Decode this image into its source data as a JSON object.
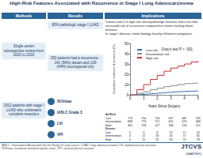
{
  "header": {
    "title": "High-Risk Features Associated with Recurrence in Stage I Lung Adenocarcinoma"
  },
  "methods": {
    "heading": "Methods",
    "items": [
      "Single center retrospective review from 2010 to 2020",
      "1912 patients with stage I LUAD who underwent complete resection"
    ]
  },
  "results": {
    "heading": "Results",
    "items": [
      "80% pathologic stage I LUAD",
      "250 patients had a recurrence - 141 (56%) distant and 109 (44%) locoregional only"
    ],
    "features": [
      "SUVmax",
      "IASLC Grade 3",
      "LVI",
      "VPI"
    ]
  },
  "implications": {
    "heading": "Implications",
    "items": [
      "Tumors with ≥ 3 high risk clinicopathologic features had a ten-fold increased risk of recurrence compared to tumors lacking these features.",
      "In stage I disease, tumor biology heavily influences prognosis."
    ]
  },
  "chart_data": {
    "type": "line",
    "line_style": "step",
    "x_label": "Years Since Surgery",
    "y_label": "Cumulative incidence of recurrence (%)",
    "annotation": "Gray's test P < .001",
    "x": [
      0,
      0.5,
      1,
      1.5,
      2,
      2.5,
      3,
      3.5,
      4,
      4.5,
      5
    ],
    "series": [
      {
        "name": "Low risk",
        "color": "#2f6db3",
        "values": [
          0,
          0.5,
          1,
          1.5,
          2,
          2.5,
          3,
          3.3,
          3.6,
          3.8,
          4
        ]
      },
      {
        "name": "Intermediate risk",
        "color": "#8a8a8a",
        "values": [
          0,
          1.5,
          3,
          5,
          6.5,
          8,
          9,
          10,
          11,
          11.5,
          12
        ]
      },
      {
        "name": "High risk",
        "color": "#c8312f",
        "values": [
          0,
          5,
          10,
          15,
          19,
          23,
          26,
          28,
          30,
          32,
          33
        ]
      }
    ],
    "xlim": [
      0,
      5
    ],
    "xticks": [
      0,
      1,
      2,
      3,
      4,
      5
    ],
    "ylim": [
      0,
      50
    ],
    "yticks": [
      0,
      10,
      20,
      30,
      40,
      50
    ],
    "grid": false,
    "legend": "upper left"
  },
  "risk_table": {
    "sections": [
      {
        "title": "At Risk",
        "rows": [
          {
            "label": "Low",
            "values": [
              773,
              750,
              716,
              697,
              487,
              376
            ]
          },
          {
            "label": "Intermediate",
            "values": [
              838,
              774,
              712,
              651,
              476,
              368
            ]
          },
          {
            "label": "High",
            "values": [
              301,
              258,
              217,
              186,
              144,
              115
            ]
          }
        ]
      },
      {
        "title": "Events",
        "rows": [
          {
            "label": "Low",
            "values": [
              0,
              3,
              8,
              13,
              17,
              20
            ]
          },
          {
            "label": "Intermediate",
            "values": [
              0,
              12,
              33,
              56,
              72,
              82
            ]
          },
          {
            "label": "High",
            "values": [
              0,
              15,
              35,
              56,
              70,
              78
            ]
          }
        ]
      }
    ]
  },
  "footer": {
    "abbreviations": "IASLC, International Association for the Study of Lung Cancer; LUAD, lung adenocarcinoma; LVI, lymphovascular invasion; SUVmax, maximum standard uptake value; VPI, visceral pleural invasion.",
    "journal": "JTCVS",
    "handle": "@AATSHQ"
  }
}
